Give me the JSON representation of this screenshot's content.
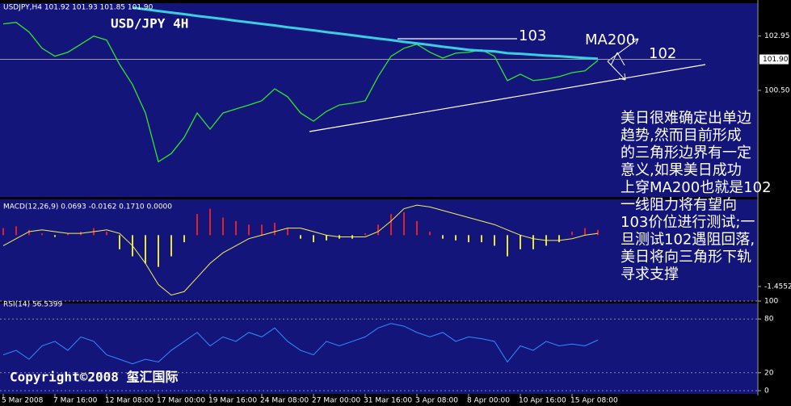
{
  "chart_data": [
    {
      "type": "line",
      "header": "USDJPY,H4  101.92 101.93 101.85 101.90",
      "title": "USD/JPY 4H",
      "annotations": [
        "103",
        "MA200",
        "102"
      ],
      "text_block": [
        "美日很难确定出单边",
        "趋势,然而目前形成",
        "的三角形边界有一定",
        "意义,如果美日成功",
        "上穿MA200也就是102",
        "一线阻力将有望向",
        "103价位进行测试;一",
        "旦测试102遇阻回落,",
        "美日将向三角形下轨",
        "寻求支撑"
      ],
      "series": [
        {
          "color": "#2ee62e",
          "width": 1.3,
          "values": [
            103.5,
            103.57,
            103.13,
            102.4,
            102.04,
            102.22,
            102.58,
            102.95,
            102.77,
            101.67,
            100.76,
            99.48,
            97.28,
            97.65,
            98.38,
            99.48,
            98.75,
            99.48,
            99.66,
            99.84,
            100.03,
            100.57,
            100.21,
            99.48,
            99.11,
            99.55,
            99.84,
            99.92,
            100.03,
            101.12,
            102.04,
            102.4,
            102.58,
            102.22,
            101.96,
            102.18,
            102.22,
            102.33,
            102.04,
            100.94,
            101.23,
            100.94,
            101.01,
            101.12,
            101.3,
            101.38,
            101.85
          ]
        },
        {
          "color": "#38cfe0",
          "width": 3,
          "values": [
            null,
            null,
            null,
            null,
            null,
            null,
            null,
            null,
            null,
            null,
            104.23,
            104.16,
            104.08,
            104.01,
            103.94,
            103.86,
            103.79,
            103.72,
            103.64,
            103.57,
            103.5,
            103.43,
            103.35,
            103.28,
            103.21,
            103.13,
            103.06,
            102.99,
            102.91,
            102.84,
            102.77,
            102.69,
            102.62,
            102.55,
            102.47,
            102.4,
            102.33,
            102.29,
            102.26,
            102.18,
            102.15,
            102.11,
            102.07,
            102.04,
            102.0,
            101.96,
            101.93
          ]
        }
      ],
      "ylim": [
        95.8,
        104.25
      ],
      "yticks": [
        102.95,
        {
          "value": 101.9,
          "label": "101.90",
          "highlight": true
        },
        {
          "value": 100.5,
          "label": "100.50"
        }
      ]
    },
    {
      "type": "bar",
      "header": "MACD(12,26,9) 0.0693 -0.0162 0.1710 0.0000",
      "color": "#e0202a",
      "negative_color": "#e8e83a",
      "line_color": "#f2f25a",
      "values": [
        0.2,
        0.25,
        0.15,
        0.05,
        -0.05,
        0.05,
        0.1,
        0.2,
        0.1,
        -0.4,
        -0.6,
        -0.8,
        -0.9,
        -0.6,
        -0.2,
        0.6,
        0.75,
        0.5,
        0.4,
        0.3,
        0.3,
        0.35,
        0.2,
        -0.1,
        -0.2,
        -0.15,
        -0.1,
        -0.1,
        0.05,
        0.3,
        0.6,
        0.65,
        0.4,
        0.1,
        -0.1,
        -0.15,
        -0.2,
        -0.2,
        -0.3,
        -0.6,
        -0.4,
        -0.4,
        -0.3,
        -0.2,
        0.1,
        0.2,
        0.15
      ],
      "line_values": [
        -0.3,
        -0.1,
        0.1,
        0.15,
        0.1,
        0.05,
        0.05,
        0.1,
        0.15,
        0.05,
        -0.3,
        -0.8,
        -1.4,
        -1.7,
        -1.6,
        -1.2,
        -0.8,
        -0.5,
        -0.3,
        -0.1,
        0,
        0.1,
        0.2,
        0.2,
        0.1,
        0,
        -0.05,
        -0.05,
        -0.05,
        0.1,
        0.4,
        0.75,
        0.85,
        0.8,
        0.7,
        0.6,
        0.5,
        0.4,
        0.3,
        0.15,
        0,
        -0.1,
        -0.15,
        -0.15,
        -0.1,
        0,
        0.05
      ],
      "ylim": [
        -1.8,
        0.9
      ],
      "yticks": [
        -1.4552
      ]
    },
    {
      "type": "line",
      "header": "RSI(14) 56.5399",
      "footer": "Copyright©2008 玺汇国际",
      "categories": [
        "5 Mar 2008",
        null,
        null,
        null,
        "7 Mar 16:00",
        null,
        null,
        null,
        "12 Mar 08:00",
        null,
        null,
        null,
        "17 Mar 00:00",
        null,
        null,
        null,
        "19 Mar 16:00",
        null,
        null,
        null,
        "24 Mar 08:00",
        null,
        null,
        null,
        "27 Mar 00:00",
        null,
        null,
        null,
        "31 Mar 16:00",
        null,
        null,
        null,
        "3 Apr 08:00",
        null,
        null,
        null,
        "8 Apr 00:00",
        null,
        null,
        null,
        "10 Apr 16:00",
        null,
        null,
        null,
        "15 Apr 08:00",
        null,
        null
      ],
      "series": [
        {
          "color": "#2f8fff",
          "width": 1,
          "values": [
            40,
            45,
            35,
            50,
            55,
            45,
            60,
            55,
            40,
            35,
            30,
            35,
            32,
            45,
            55,
            65,
            50,
            60,
            55,
            65,
            60,
            70,
            55,
            45,
            40,
            55,
            50,
            55,
            60,
            70,
            75,
            72,
            65,
            60,
            65,
            55,
            60,
            58,
            55,
            32,
            50,
            45,
            55,
            50,
            52,
            50,
            56.5399
          ]
        }
      ],
      "ylim": [
        0,
        100
      ],
      "yticks": [
        100,
        80,
        20,
        0
      ],
      "grid": true
    }
  ]
}
